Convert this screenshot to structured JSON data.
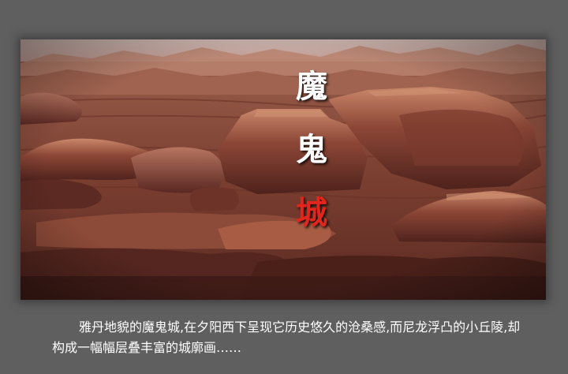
{
  "title": {
    "chars": [
      "魔",
      "鬼",
      "城"
    ],
    "color_main": "#ffffff",
    "color_accent": "#e3261d"
  },
  "caption": {
    "text": "雅丹地貌的魔鬼城,在夕阳西下呈现它历史悠久的沧桑感,而尼龙浮凸的小丘陵,却构成一幅幅层叠丰富的城廓画……"
  },
  "colors": {
    "background": "#5f5f5f",
    "rock_dark": "#4a2420",
    "rock_mid": "#8a4a3a",
    "rock_light": "#c98a6a",
    "sky_haze": "#d9c6c0"
  }
}
